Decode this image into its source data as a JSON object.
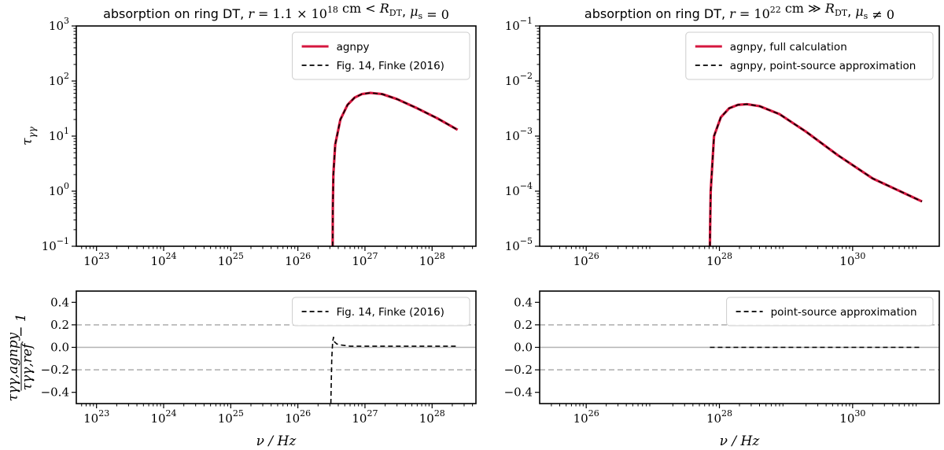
{
  "chart_data": [
    {
      "id": "tl",
      "type": "line",
      "title": "absorption on ring DT, r = 1.1 × 10¹⁸ cm < R_DT, μ_s = 0",
      "xlabel": "",
      "ylabel": "τ_γγ",
      "xscale": "log",
      "yscale": "log",
      "xlim": [
        5e+22,
        4.5e+28
      ],
      "ylim": [
        0.1,
        1000
      ],
      "xticks": [
        {
          "value": 1e+23,
          "mant": "10",
          "exp": "23"
        },
        {
          "value": 1e+24,
          "mant": "10",
          "exp": "24"
        },
        {
          "value": 1e+25,
          "mant": "10",
          "exp": "25"
        },
        {
          "value": 1e+26,
          "mant": "10",
          "exp": "26"
        },
        {
          "value": 1e+27,
          "mant": "10",
          "exp": "27"
        },
        {
          "value": 1e+28,
          "mant": "10",
          "exp": "28"
        }
      ],
      "yticks": [
        {
          "value": 0.1,
          "mant": "10",
          "exp": "−1"
        },
        {
          "value": 1,
          "mant": "10",
          "exp": "0"
        },
        {
          "value": 10,
          "mant": "10",
          "exp": "1"
        },
        {
          "value": 100,
          "mant": "10",
          "exp": "2"
        },
        {
          "value": 1000,
          "mant": "10",
          "exp": "3"
        }
      ],
      "hlines": [],
      "legend": {
        "position": "top-right",
        "entries": [
          {
            "label": "agnpy",
            "style": "solid",
            "color": "#d6163e"
          },
          {
            "label": "Fig. 14, Finke (2016)",
            "style": "dashed",
            "color": "#000000"
          }
        ]
      },
      "series": [
        {
          "name": "agnpy",
          "style": "solid",
          "color": "#d6163e",
          "width": 3.2,
          "x": [
            3.3e+26,
            3.32e+26,
            3.38e+26,
            3.6e+26,
            4.3e+26,
            5.5e+26,
            7e+26,
            9e+26,
            1.2e+27,
            1.8e+27,
            3e+27,
            6e+27,
            1.2e+28,
            2.4e+28
          ],
          "y": [
            0.1,
            0.5,
            2,
            7,
            20,
            37,
            50,
            58,
            61,
            58,
            47,
            32,
            21,
            13
          ]
        },
        {
          "name": "Fig. 14, Finke (2016)",
          "style": "dashed",
          "color": "#000000",
          "width": 1.6,
          "x": [
            3.3e+26,
            3.32e+26,
            3.38e+26,
            3.6e+26,
            4.3e+26,
            5.5e+26,
            7e+26,
            9e+26,
            1.2e+27,
            1.8e+27,
            3e+27,
            6e+27,
            1.2e+28,
            2.4e+28
          ],
          "y": [
            0.1,
            0.5,
            2,
            7,
            20,
            37,
            50,
            58,
            61,
            58,
            47,
            32,
            21,
            13
          ]
        }
      ]
    },
    {
      "id": "tr",
      "type": "line",
      "title": "absorption on ring DT, r = 10²² cm ≫ R_DT, μ_s ≠ 0",
      "xlabel": "",
      "ylabel": "",
      "xscale": "log",
      "yscale": "log",
      "xlim": [
        2e+25,
        2e+31
      ],
      "ylim": [
        1e-05,
        0.1
      ],
      "xticks": [
        {
          "value": 1e+26,
          "mant": "10",
          "exp": "26"
        },
        {
          "value": 1e+28,
          "mant": "10",
          "exp": "28"
        },
        {
          "value": 1e+30,
          "mant": "10",
          "exp": "30"
        }
      ],
      "yticks": [
        {
          "value": 1e-05,
          "mant": "10",
          "exp": "−5"
        },
        {
          "value": 0.0001,
          "mant": "10",
          "exp": "−4"
        },
        {
          "value": 0.001,
          "mant": "10",
          "exp": "−3"
        },
        {
          "value": 0.01,
          "mant": "10",
          "exp": "−2"
        },
        {
          "value": 0.1,
          "mant": "10",
          "exp": "−1"
        }
      ],
      "hlines": [],
      "legend": {
        "position": "top-right",
        "entries": [
          {
            "label": "agnpy, full calculation",
            "style": "solid",
            "color": "#d6163e"
          },
          {
            "label": "agnpy, point-source approximation",
            "style": "dashed",
            "color": "#000000"
          }
        ]
      },
      "series": [
        {
          "name": "agnpy, full calculation",
          "style": "solid",
          "color": "#d6163e",
          "width": 3.2,
          "x": [
            7.2e+27,
            7.25e+27,
            7.4e+27,
            8.3e+27,
            1.05e+28,
            1.4e+28,
            1.9e+28,
            2.6e+28,
            4e+28,
            8e+28,
            2e+29,
            6e+29,
            2e+30,
            1.1e+31
          ],
          "y": [
            1e-05,
            2.2e-05,
            0.0001,
            0.001,
            0.0022,
            0.0032,
            0.0037,
            0.0038,
            0.0035,
            0.0025,
            0.0012,
            0.00045,
            0.00017,
            6.5e-05
          ]
        },
        {
          "name": "agnpy, point-source approximation",
          "style": "dashed",
          "color": "#000000",
          "width": 1.6,
          "x": [
            7.2e+27,
            7.25e+27,
            7.4e+27,
            8.3e+27,
            1.05e+28,
            1.4e+28,
            1.9e+28,
            2.6e+28,
            4e+28,
            8e+28,
            2e+29,
            6e+29,
            2e+30,
            1.1e+31
          ],
          "y": [
            1e-05,
            2.2e-05,
            0.0001,
            0.001,
            0.0022,
            0.0032,
            0.0037,
            0.0038,
            0.0035,
            0.0025,
            0.0012,
            0.00045,
            0.00017,
            6.5e-05
          ]
        }
      ]
    },
    {
      "id": "bl",
      "type": "line",
      "title": "",
      "xlabel": "ν / Hz",
      "ylabel": "τ_γγ,agnpy / τ_γγ,ref − 1",
      "xscale": "log",
      "yscale": "linear",
      "xlim": [
        5e+22,
        4.5e+28
      ],
      "ylim": [
        -0.5,
        0.5
      ],
      "xticks": [
        {
          "value": 1e+23,
          "mant": "10",
          "exp": "23"
        },
        {
          "value": 1e+24,
          "mant": "10",
          "exp": "24"
        },
        {
          "value": 1e+25,
          "mant": "10",
          "exp": "25"
        },
        {
          "value": 1e+26,
          "mant": "10",
          "exp": "26"
        },
        {
          "value": 1e+27,
          "mant": "10",
          "exp": "27"
        },
        {
          "value": 1e+28,
          "mant": "10",
          "exp": "28"
        }
      ],
      "yticks": [
        {
          "value": -0.4,
          "label": "−0.4"
        },
        {
          "value": -0.2,
          "label": "−0.2"
        },
        {
          "value": 0.0,
          "label": "0.0"
        },
        {
          "value": 0.2,
          "label": "0.2"
        },
        {
          "value": 0.4,
          "label": "0.4"
        }
      ],
      "hlines": [
        {
          "y": 0.0,
          "style": "solid"
        },
        {
          "y": 0.2,
          "style": "dashed"
        },
        {
          "y": -0.2,
          "style": "dashed"
        }
      ],
      "legend": {
        "position": "top-right",
        "entries": [
          {
            "label": "Fig. 14, Finke (2016)",
            "style": "dashed",
            "color": "#000000"
          }
        ]
      },
      "series": [
        {
          "name": "Fig. 14, Finke (2016)",
          "style": "dashed",
          "color": "#000000",
          "width": 1.6,
          "x": [
            3.1e+26,
            3.2e+26,
            3.3e+26,
            3.4e+26,
            3.5e+26,
            3.8e+26,
            4.5e+26,
            6e+26,
            1e+27,
            3e+27,
            1e+28,
            2.4e+28
          ],
          "y": [
            -0.5,
            -0.1,
            0.05,
            0.09,
            0.05,
            0.03,
            0.02,
            0.01,
            0.01,
            0.01,
            0.01,
            0.01
          ]
        }
      ]
    },
    {
      "id": "br",
      "type": "line",
      "title": "",
      "xlabel": "ν / Hz",
      "ylabel": "",
      "xscale": "log",
      "yscale": "linear",
      "xlim": [
        2e+25,
        2e+31
      ],
      "ylim": [
        -0.5,
        0.5
      ],
      "xticks": [
        {
          "value": 1e+26,
          "mant": "10",
          "exp": "26"
        },
        {
          "value": 1e+28,
          "mant": "10",
          "exp": "28"
        },
        {
          "value": 1e+30,
          "mant": "10",
          "exp": "30"
        }
      ],
      "yticks": [
        {
          "value": -0.4,
          "label": "−0.4"
        },
        {
          "value": -0.2,
          "label": "−0.2"
        },
        {
          "value": 0.0,
          "label": "0.0"
        },
        {
          "value": 0.2,
          "label": "0.2"
        },
        {
          "value": 0.4,
          "label": "0.4"
        }
      ],
      "hlines": [
        {
          "y": 0.0,
          "style": "solid"
        },
        {
          "y": 0.2,
          "style": "dashed"
        },
        {
          "y": -0.2,
          "style": "dashed"
        }
      ],
      "legend": {
        "position": "top-right",
        "entries": [
          {
            "label": "point-source approximation",
            "style": "dashed",
            "color": "#000000"
          }
        ]
      },
      "series": [
        {
          "name": "point-source approximation",
          "style": "dashed",
          "color": "#000000",
          "width": 1.6,
          "x": [
            7.2e+27,
            1e+28,
            1e+29,
            1e+30,
            1.1e+31
          ],
          "y": [
            0.0,
            0.0,
            0.0,
            0.0,
            0.0
          ]
        }
      ]
    }
  ]
}
